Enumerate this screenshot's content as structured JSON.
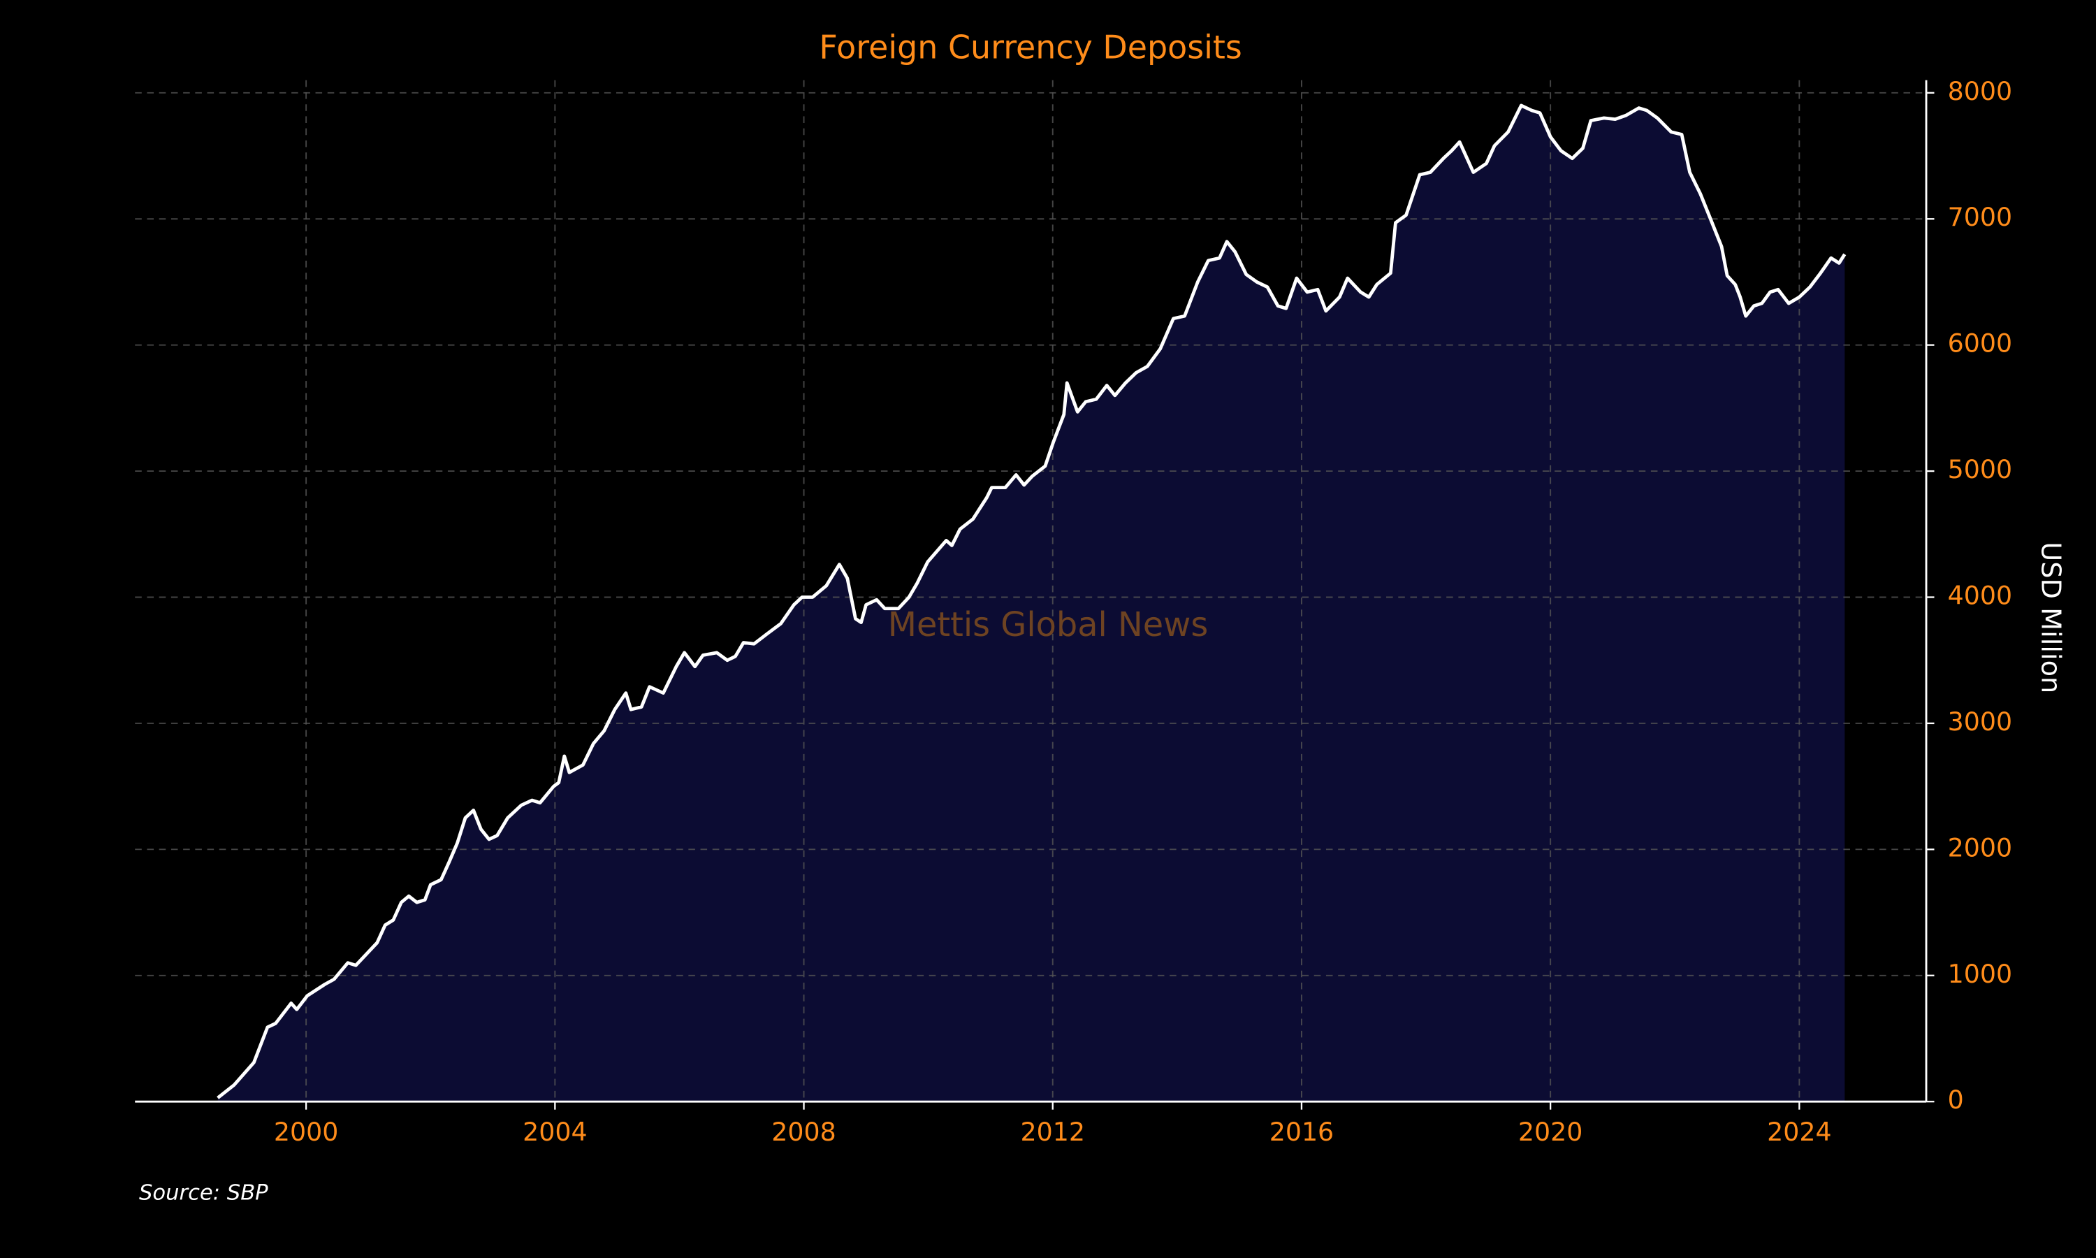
{
  "chart_data": {
    "type": "area",
    "title": "Foreign Currency Deposits",
    "y_label": "USD Million",
    "watermark": "Mettis Global News",
    "source": "Source: SBP",
    "x": [
      1998.58,
      1998.84,
      1999.16,
      1999.38,
      1999.51,
      1999.76,
      1999.85,
      2000.02,
      2000.3,
      2000.45,
      2000.67,
      2000.8,
      2001.14,
      2001.27,
      2001.4,
      2001.53,
      2001.65,
      2001.78,
      2001.91,
      2002.0,
      2002.17,
      2002.3,
      2002.43,
      2002.56,
      2002.69,
      2002.81,
      2002.94,
      2003.07,
      2003.24,
      2003.46,
      2003.63,
      2003.76,
      2003.98,
      2004.06,
      2004.15,
      2004.23,
      2004.45,
      2004.62,
      2004.79,
      2004.96,
      2005.14,
      2005.22,
      2005.39,
      2005.52,
      2005.74,
      2005.95,
      2006.08,
      2006.25,
      2006.38,
      2006.6,
      2006.77,
      2006.9,
      2007.03,
      2007.2,
      2007.41,
      2007.63,
      2007.84,
      2007.97,
      2008.14,
      2008.36,
      2008.57,
      2008.7,
      2008.83,
      2008.92,
      2009.0,
      2009.17,
      2009.3,
      2009.52,
      2009.69,
      2009.82,
      2009.99,
      2010.29,
      2010.38,
      2010.51,
      2010.72,
      2010.94,
      2011.02,
      2011.24,
      2011.41,
      2011.54,
      2011.67,
      2011.88,
      2012.01,
      2012.18,
      2012.23,
      2012.4,
      2012.53,
      2012.7,
      2012.87,
      2013.0,
      2013.17,
      2013.34,
      2013.52,
      2013.73,
      2013.94,
      2014.12,
      2014.33,
      2014.5,
      2014.68,
      2014.8,
      2014.93,
      2015.11,
      2015.28,
      2015.45,
      2015.62,
      2015.75,
      2015.92,
      2016.09,
      2016.26,
      2016.39,
      2016.61,
      2016.74,
      2016.95,
      2017.08,
      2017.21,
      2017.43,
      2017.51,
      2017.68,
      2017.9,
      2018.07,
      2018.28,
      2018.41,
      2018.54,
      2018.76,
      2018.97,
      2019.1,
      2019.32,
      2019.53,
      2019.7,
      2019.83,
      2020.0,
      2020.17,
      2020.35,
      2020.52,
      2020.65,
      2020.86,
      2021.04,
      2021.21,
      2021.42,
      2021.55,
      2021.72,
      2021.94,
      2022.11,
      2022.24,
      2022.41,
      2022.58,
      2022.75,
      2022.84,
      2022.97,
      2023.05,
      2023.14,
      2023.27,
      2023.4,
      2023.53,
      2023.66,
      2023.83,
      2024.0,
      2024.17,
      2024.34,
      2024.51,
      2024.64,
      2024.73
    ],
    "values": [
      30,
      130,
      310,
      590,
      620,
      780,
      730,
      840,
      930,
      970,
      1100,
      1080,
      1260,
      1400,
      1440,
      1580,
      1630,
      1580,
      1600,
      1720,
      1760,
      1900,
      2050,
      2250,
      2310,
      2160,
      2080,
      2110,
      2250,
      2350,
      2390,
      2370,
      2500,
      2530,
      2740,
      2610,
      2670,
      2840,
      2940,
      3110,
      3240,
      3110,
      3130,
      3290,
      3240,
      3450,
      3560,
      3450,
      3540,
      3560,
      3500,
      3530,
      3640,
      3630,
      3710,
      3790,
      3940,
      4000,
      4000,
      4090,
      4260,
      4150,
      3830,
      3800,
      3940,
      3980,
      3910,
      3910,
      4000,
      4110,
      4280,
      4450,
      4410,
      4540,
      4620,
      4790,
      4870,
      4870,
      4970,
      4890,
      4960,
      5040,
      5230,
      5450,
      5700,
      5470,
      5550,
      5570,
      5680,
      5600,
      5700,
      5780,
      5830,
      5970,
      6210,
      6230,
      6500,
      6670,
      6690,
      6820,
      6740,
      6560,
      6500,
      6460,
      6310,
      6290,
      6530,
      6420,
      6440,
      6270,
      6380,
      6530,
      6420,
      6380,
      6480,
      6570,
      6970,
      7030,
      7350,
      7370,
      7480,
      7540,
      7610,
      7370,
      7440,
      7580,
      7690,
      7900,
      7860,
      7840,
      7650,
      7540,
      7480,
      7560,
      7780,
      7800,
      7790,
      7820,
      7880,
      7860,
      7800,
      7690,
      7670,
      7370,
      7200,
      6990,
      6780,
      6550,
      6480,
      6380,
      6230,
      6310,
      6330,
      6420,
      6440,
      6330,
      6380,
      6460,
      6570,
      6690,
      6650,
      6720
    ],
    "line_color": "#ffffff",
    "fill_color": "#0c0c33",
    "xlim": [
      1997.25,
      2026.04
    ],
    "ylim": [
      0,
      8100
    ],
    "xticks": [
      2000,
      2004,
      2008,
      2012,
      2016,
      2020,
      2024
    ],
    "yticks": [
      0,
      1000,
      2000,
      3000,
      4000,
      5000,
      6000,
      7000,
      8000
    ],
    "grid": true,
    "y_axis_side": "right"
  }
}
